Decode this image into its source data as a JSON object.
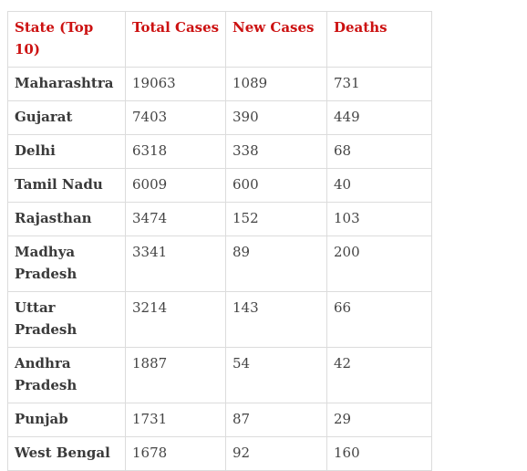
{
  "colors": {
    "header_text": "#cc1111",
    "body_text": "#444444",
    "border": "#dcdcdc"
  },
  "table": {
    "headers": [
      "State (Top 10)",
      "Total Cases",
      "New Cases",
      "Deaths"
    ],
    "rows": [
      [
        "Maharashtra",
        "19063",
        "1089",
        "731"
      ],
      [
        "Gujarat",
        "7403",
        "390",
        "449"
      ],
      [
        "Delhi",
        "6318",
        "338",
        "68"
      ],
      [
        "Tamil Nadu",
        "6009",
        "600",
        "40"
      ],
      [
        "Rajasthan",
        "3474",
        "152",
        "103"
      ],
      [
        "Madhya Pradesh",
        "3341",
        "89",
        "200"
      ],
      [
        "Uttar Pradesh",
        "3214",
        "143",
        "66"
      ],
      [
        "Andhra Pradesh",
        "1887",
        "54",
        "42"
      ],
      [
        "Punjab",
        "1731",
        "87",
        "29"
      ],
      [
        "West Bengal",
        "1678",
        "92",
        "160"
      ]
    ]
  }
}
